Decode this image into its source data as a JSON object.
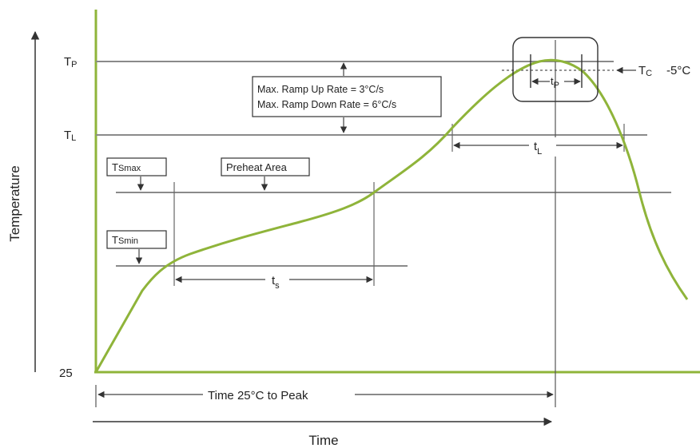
{
  "colors": {
    "profile_curve": "#8fb43a",
    "axes": "#8fb43a",
    "guide_lines": "#8a8a8a",
    "text": "#222222"
  },
  "axes": {
    "y_title": "Temperature",
    "x_title": "Time",
    "origin_label": "25"
  },
  "levels": {
    "tp": {
      "main": "T",
      "sub": "P"
    },
    "tl": {
      "main": "T",
      "sub": "L"
    },
    "tc": {
      "main": "T",
      "sub": "C",
      "offset": "-5°C"
    }
  },
  "boxes": {
    "tsmax": {
      "main": "T",
      "sub": "Smax"
    },
    "tsmin": {
      "main": "T",
      "sub": "Smin"
    },
    "preheat": "Preheat Area",
    "ramp_up": "Max. Ramp Up Rate = 3°C/s",
    "ramp_down": "Max. Ramp Down Rate = 6°C/s"
  },
  "durations": {
    "ts": {
      "main": "t",
      "sub": "s"
    },
    "tl": {
      "main": "t",
      "sub": "L"
    },
    "tp": {
      "main": "t",
      "sub": "P"
    },
    "time_to_peak": "Time 25°C to Peak"
  }
}
